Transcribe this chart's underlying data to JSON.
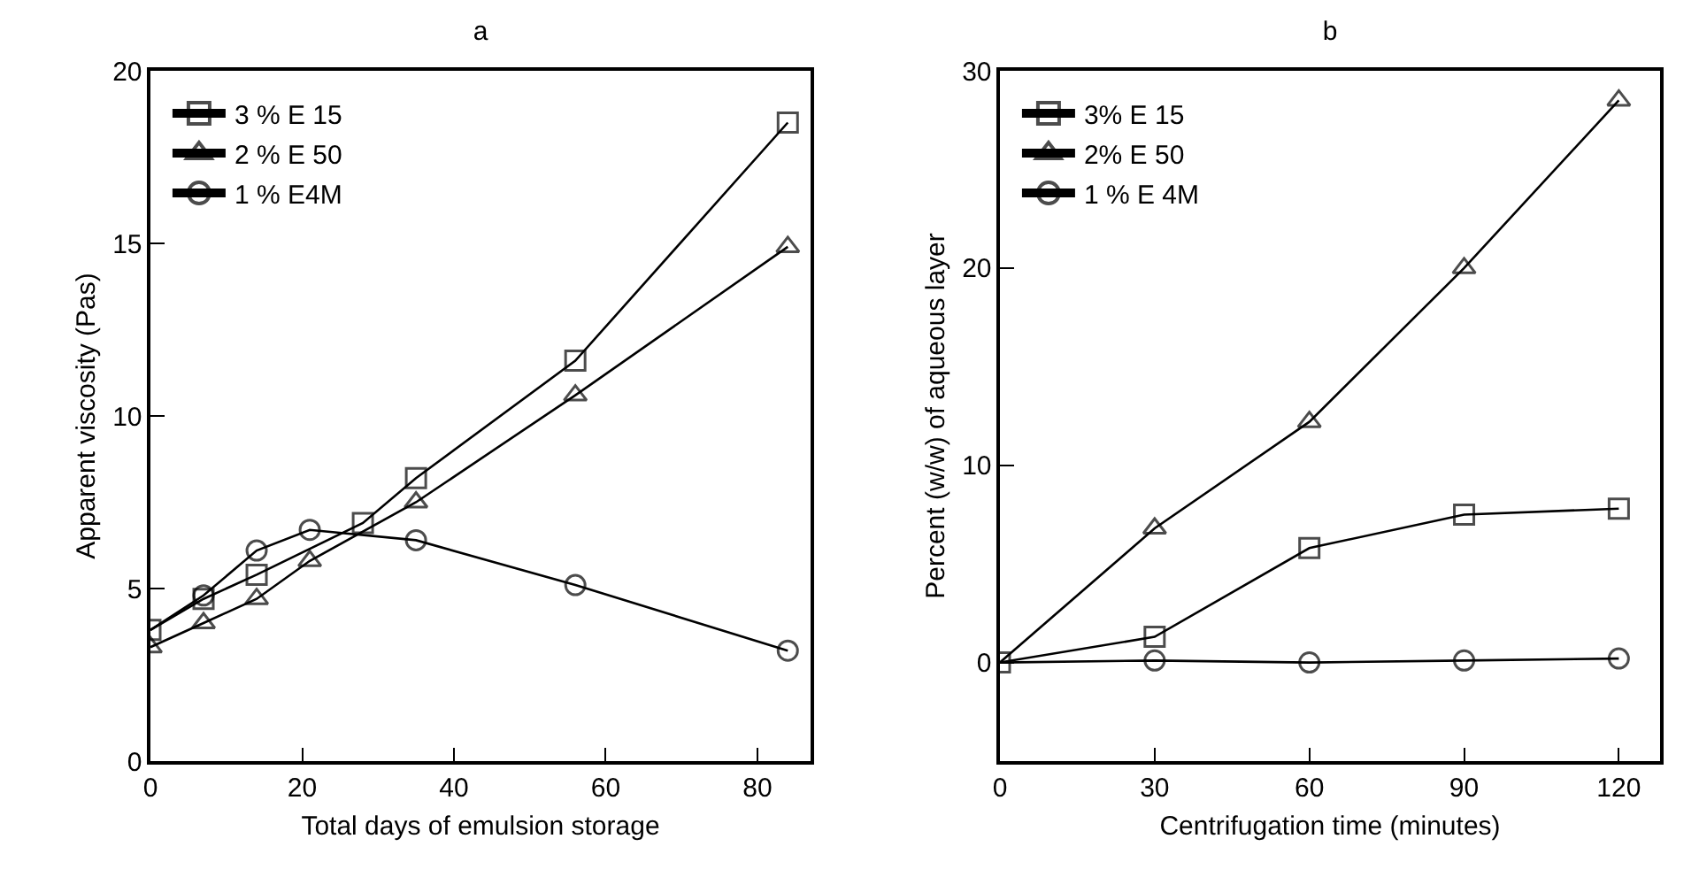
{
  "chart_data": [
    {
      "type": "line",
      "title": "a",
      "xlabel": "Total days of emulsion storage",
      "ylabel": "Apparent viscosity (Pas)",
      "xlim": [
        0,
        87
      ],
      "xticks": [
        0,
        20,
        40,
        60,
        80
      ],
      "ylim": [
        0,
        20
      ],
      "yticks": [
        0,
        5,
        10,
        15,
        20
      ],
      "grid": false,
      "legend": "top left",
      "line_style": "solid",
      "series": [
        {
          "name": "3 % E 15",
          "color": "#000000",
          "marker": "square",
          "x": [
            0,
            7,
            14,
            28,
            35,
            56,
            84
          ],
          "values": [
            3.8,
            4.7,
            5.4,
            6.9,
            8.2,
            11.6,
            18.5
          ]
        },
        {
          "name": "2 % E 50",
          "color": "#000000",
          "marker": "triangle",
          "x": [
            0,
            7,
            14,
            21,
            35,
            56,
            84
          ],
          "values": [
            3.3,
            4.0,
            4.7,
            5.8,
            7.5,
            10.6,
            14.9
          ]
        },
        {
          "name": "1 % E4M",
          "color": "#000000",
          "marker": "circle",
          "x": [
            0,
            7,
            14,
            21,
            35,
            56,
            84
          ],
          "values": [
            3.8,
            4.8,
            6.1,
            6.7,
            6.4,
            5.1,
            3.2
          ]
        }
      ]
    },
    {
      "type": "line",
      "title": "b",
      "xlabel": "Centrifugation time (minutes)",
      "ylabel": "Percent (w/w) of aqueous layer",
      "xlim": [
        0,
        128
      ],
      "xticks": [
        0,
        30,
        60,
        90,
        120
      ],
      "ylim": [
        -5,
        30
      ],
      "yticks": [
        0,
        10,
        20,
        30
      ],
      "grid": false,
      "legend": "top left",
      "line_style": "solid",
      "series": [
        {
          "name": "3% E 15",
          "color": "#000000",
          "marker": "square",
          "x": [
            0,
            30,
            60,
            90,
            120
          ],
          "values": [
            0,
            1.3,
            5.8,
            7.5,
            7.8
          ]
        },
        {
          "name": "2% E 50",
          "color": "#000000",
          "marker": "triangle",
          "x": [
            0,
            30,
            60,
            90,
            120
          ],
          "values": [
            0,
            6.8,
            12.2,
            20,
            28.5
          ]
        },
        {
          "name": "1 % E 4M",
          "color": "#000000",
          "marker": "circle",
          "x": [
            0,
            30,
            60,
            90,
            120
          ],
          "values": [
            0,
            0.1,
            0,
            0.1,
            0.2
          ]
        }
      ]
    }
  ]
}
